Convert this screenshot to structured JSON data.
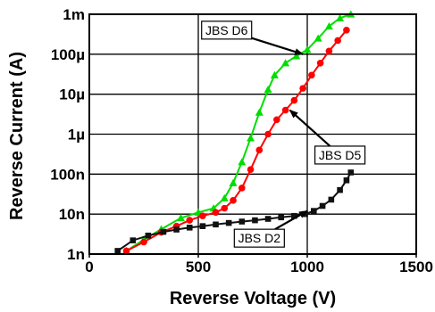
{
  "chart_data": {
    "type": "line",
    "title": "",
    "xlabel": "Reverse Voltage (V)",
    "ylabel": "Reverse Current (A)",
    "xlim": [
      0,
      1500
    ],
    "ylim": [
      1e-09,
      0.001
    ],
    "yscale": "log",
    "grid": true,
    "x_ticks": [
      {
        "value": 0,
        "label": "0"
      },
      {
        "value": 500,
        "label": "500"
      },
      {
        "value": 1000,
        "label": "1000"
      },
      {
        "value": 1500,
        "label": "1500"
      }
    ],
    "y_ticks": [
      {
        "value": 1e-09,
        "label": "1n"
      },
      {
        "value": 1e-08,
        "label": "10n"
      },
      {
        "value": 1e-07,
        "label": "100n"
      },
      {
        "value": 1e-06,
        "label": "1µ"
      },
      {
        "value": 1e-05,
        "label": "10µ"
      },
      {
        "value": 0.0001,
        "label": "100µ"
      },
      {
        "value": 0.001,
        "label": "1m"
      }
    ],
    "series": [
      {
        "name": "JBS D6",
        "color": "#00dd00",
        "marker": "triangle",
        "points": [
          [
            170,
            1.2e-09
          ],
          [
            250,
            2.3e-09
          ],
          [
            330,
            4.2e-09
          ],
          [
            420,
            8e-09
          ],
          [
            500,
            1.1e-08
          ],
          [
            570,
            1.4e-08
          ],
          [
            620,
            2.5e-08
          ],
          [
            660,
            6e-08
          ],
          [
            700,
            2e-07
          ],
          [
            740,
            8e-07
          ],
          [
            780,
            3.5e-06
          ],
          [
            820,
            1.3e-05
          ],
          [
            850,
            3e-05
          ],
          [
            900,
            6e-05
          ],
          [
            950,
            9e-05
          ],
          [
            1000,
            0.00013
          ],
          [
            1050,
            0.00025
          ],
          [
            1100,
            0.0005
          ],
          [
            1150,
            0.0008
          ],
          [
            1200,
            0.001
          ]
        ]
      },
      {
        "name": "JBS D5",
        "color": "#ff0000",
        "marker": "circle",
        "points": [
          [
            170,
            1.2e-09
          ],
          [
            250,
            2e-09
          ],
          [
            330,
            3.5e-09
          ],
          [
            400,
            5e-09
          ],
          [
            460,
            7e-09
          ],
          [
            520,
            9e-09
          ],
          [
            580,
            1.1e-08
          ],
          [
            620,
            1.4e-08
          ],
          [
            660,
            2.2e-08
          ],
          [
            700,
            4.5e-08
          ],
          [
            740,
            1.3e-07
          ],
          [
            780,
            4e-07
          ],
          [
            820,
            1e-06
          ],
          [
            860,
            2.3e-06
          ],
          [
            900,
            4e-06
          ],
          [
            940,
            7e-06
          ],
          [
            980,
            1.4e-05
          ],
          [
            1020,
            3e-05
          ],
          [
            1060,
            6e-05
          ],
          [
            1100,
            0.00012
          ],
          [
            1140,
            0.00022
          ],
          [
            1180,
            0.0004
          ]
        ]
      },
      {
        "name": "JBS D2",
        "color": "#111111",
        "marker": "square",
        "points": [
          [
            130,
            1.2e-09
          ],
          [
            200,
            2.2e-09
          ],
          [
            270,
            2.9e-09
          ],
          [
            340,
            3.6e-09
          ],
          [
            400,
            4.1e-09
          ],
          [
            460,
            4.6e-09
          ],
          [
            520,
            5e-09
          ],
          [
            580,
            5.5e-09
          ],
          [
            640,
            6e-09
          ],
          [
            700,
            6.5e-09
          ],
          [
            760,
            7e-09
          ],
          [
            820,
            7.6e-09
          ],
          [
            880,
            8.3e-09
          ],
          [
            940,
            9e-09
          ],
          [
            990,
            1e-08
          ],
          [
            1030,
            1.2e-08
          ],
          [
            1070,
            1.6e-08
          ],
          [
            1110,
            2.3e-08
          ],
          [
            1150,
            4e-08
          ],
          [
            1180,
            7e-08
          ],
          [
            1200,
            1.1e-07
          ]
        ]
      }
    ],
    "annotations": [
      {
        "text": "JBS D6",
        "box_at": [
          630,
          0.0004
        ],
        "arrow_to": [
          980,
          0.0001
        ]
      },
      {
        "text": "JBS D5",
        "box_at": [
          1150,
          3e-07
        ],
        "arrow_to": [
          920,
          4e-06
        ]
      },
      {
        "text": "JBS D2",
        "box_at": [
          780,
          2.5e-09
        ],
        "arrow_to": [
          1000,
          1.2e-08
        ]
      }
    ]
  }
}
